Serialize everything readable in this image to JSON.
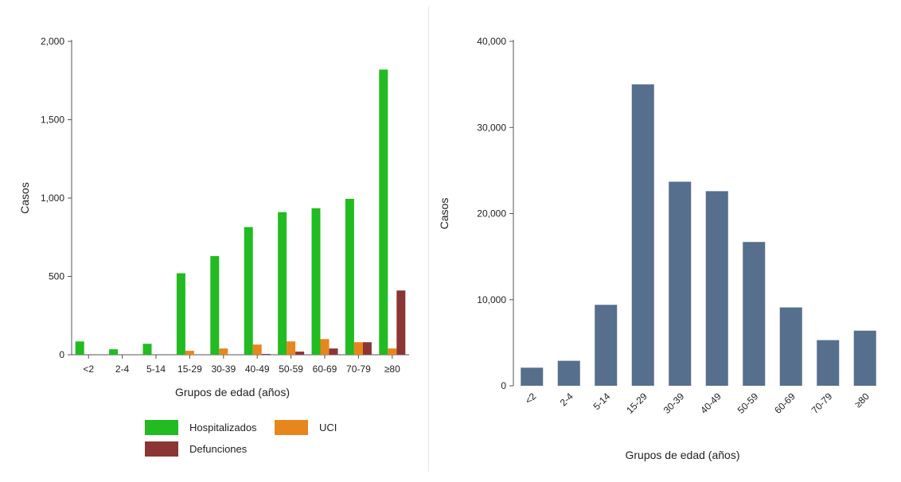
{
  "chart_data": [
    {
      "type": "bar",
      "categories": [
        "<2",
        "2-4",
        "5-14",
        "15-29",
        "30-39",
        "40-49",
        "50-59",
        "60-69",
        "70-79",
        "≥80"
      ],
      "series": [
        {
          "name": "Hospitalizados",
          "color": "#22bb22",
          "values": [
            85,
            35,
            70,
            520,
            630,
            815,
            910,
            935,
            995,
            1820
          ]
        },
        {
          "name": "UCI",
          "color": "#e8861e",
          "values": [
            0,
            0,
            0,
            25,
            40,
            65,
            85,
            100,
            80,
            40
          ]
        },
        {
          "name": "Defunciones",
          "color": "#8c3535",
          "values": [
            0,
            0,
            0,
            0,
            0,
            5,
            20,
            40,
            80,
            410
          ]
        }
      ],
      "xlabel": "Grupos de edad (años)",
      "ylabel": "Casos",
      "ylim": [
        0,
        2000
      ],
      "yticks": [
        0,
        500,
        1000,
        1500,
        2000
      ],
      "ytick_labels": [
        "0",
        "500",
        "1,000",
        "1,500",
        "2,000"
      ],
      "legend_position": "bottom",
      "grid": false
    },
    {
      "type": "bar",
      "categories": [
        "<2",
        "2-4",
        "5-14",
        "15-29",
        "30-39",
        "40-49",
        "50-59",
        "60-69",
        "70-79",
        "≥80"
      ],
      "series": [
        {
          "color": "#566f8d",
          "values": [
            2100,
            2900,
            9400,
            35000,
            23700,
            22600,
            16700,
            9100,
            5300,
            6400
          ]
        }
      ],
      "xlabel": "Grupos de edad (años)",
      "ylabel": "Casos",
      "ylim": [
        0,
        40000
      ],
      "yticks": [
        0,
        10000,
        20000,
        30000,
        40000
      ],
      "ytick_labels": [
        "0",
        "10,000",
        "20,000",
        "30,000",
        "40,000"
      ],
      "grid": false
    }
  ]
}
